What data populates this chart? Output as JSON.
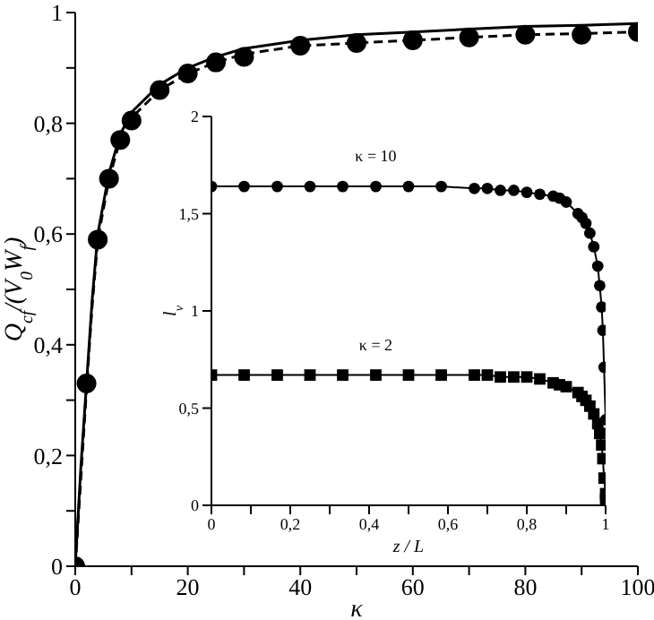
{
  "chart_data": [
    {
      "type": "line",
      "xlabel": "κ",
      "ylabel": "Q$_{cf}$/(V$_{0}$W$_{f}$)",
      "xlim": [
        0,
        100
      ],
      "ylim": [
        0,
        1
      ],
      "xticks": [
        0,
        {
          "value": 10,
          "label": null
        },
        20,
        {
          "value": 30,
          "label": null
        },
        40,
        {
          "value": 50,
          "label": null
        },
        60,
        {
          "value": 70,
          "label": null
        },
        80,
        {
          "value": 90,
          "label": null
        },
        100
      ],
      "yticks": [
        0,
        {
          "value": 0.1,
          "label": null
        },
        {
          "value": 0.2,
          "label": "0,2"
        },
        {
          "value": 0.3,
          "label": null
        },
        {
          "value": 0.4,
          "label": "0,4"
        },
        {
          "value": 0.5,
          "label": null
        },
        {
          "value": 0.6,
          "label": "0,6"
        },
        {
          "value": 0.7,
          "label": null
        },
        {
          "value": 0.8,
          "label": "0,8"
        },
        {
          "value": 0.9,
          "label": null
        },
        1
      ],
      "series": [
        {
          "type": "scatter",
          "marker": "circle",
          "color": "#000000",
          "x": [
            0,
            2,
            4,
            6,
            8,
            10,
            15,
            20,
            25,
            30,
            40,
            50,
            60,
            70,
            80,
            90,
            100
          ],
          "values": [
            0,
            0.33,
            0.59,
            0.7,
            0.77,
            0.805,
            0.86,
            0.89,
            0.91,
            0.92,
            0.94,
            0.945,
            0.95,
            0.955,
            0.96,
            0.96,
            0.965
          ]
        },
        {
          "marker": "none",
          "line_style": "solid",
          "color": "#000000",
          "x": [
            0,
            1,
            2,
            3,
            4,
            6,
            8,
            10,
            15,
            20,
            25,
            30,
            40,
            50,
            60,
            70,
            80,
            90,
            100
          ],
          "values": [
            0,
            0.18,
            0.33,
            0.48,
            0.6,
            0.71,
            0.78,
            0.82,
            0.87,
            0.9,
            0.92,
            0.935,
            0.95,
            0.96,
            0.965,
            0.97,
            0.975,
            0.977,
            0.98
          ]
        },
        {
          "marker": "none",
          "line_style": "dashed",
          "color": "#000000",
          "x": [
            0,
            1,
            2,
            3,
            4,
            6,
            8,
            10,
            15,
            20,
            25,
            30,
            40,
            50,
            60,
            70,
            80,
            90,
            100
          ],
          "values": [
            0,
            0.16,
            0.32,
            0.47,
            0.59,
            0.7,
            0.77,
            0.81,
            0.86,
            0.89,
            0.91,
            0.925,
            0.94,
            0.945,
            0.95,
            0.955,
            0.96,
            0.962,
            0.965
          ]
        }
      ]
    },
    {
      "type": "line",
      "xlabel": "z / L",
      "ylabel": "l$_{v}$",
      "xlim": [
        0,
        1
      ],
      "ylim": [
        0,
        2
      ],
      "xticks": [
        0,
        {
          "value": 0.1,
          "label": null
        },
        {
          "value": 0.2,
          "label": "0,2"
        },
        {
          "value": 0.3,
          "label": null
        },
        {
          "value": 0.4,
          "label": "0,4"
        },
        {
          "value": 0.5,
          "label": null
        },
        {
          "value": 0.6,
          "label": "0,6"
        },
        {
          "value": 0.7,
          "label": null
        },
        {
          "value": 0.8,
          "label": "0,8"
        },
        {
          "value": 0.9,
          "label": null
        },
        1
      ],
      "yticks": [
        0,
        {
          "value": 0.5,
          "label": "0,5"
        },
        1,
        {
          "value": 1.5,
          "label": "1,5"
        },
        2
      ],
      "series": [
        {
          "name": "κ = 10",
          "marker": "circle",
          "line_style": "solid",
          "color": "#000000",
          "x": [
            0,
            0.083,
            0.167,
            0.25,
            0.333,
            0.417,
            0.5,
            0.583,
            0.667,
            0.7,
            0.733,
            0.767,
            0.8,
            0.833,
            0.867,
            0.883,
            0.9,
            0.93,
            0.94,
            0.95,
            0.96,
            0.97,
            0.98,
            0.985,
            0.99,
            0.993,
            0.996,
            1.0
          ],
          "values": [
            1.64,
            1.64,
            1.64,
            1.64,
            1.64,
            1.64,
            1.64,
            1.64,
            1.63,
            1.63,
            1.62,
            1.62,
            1.61,
            1.6,
            1.59,
            1.58,
            1.56,
            1.5,
            1.48,
            1.45,
            1.4,
            1.33,
            1.23,
            1.13,
            1.02,
            0.9,
            0.71,
            0.44
          ]
        },
        {
          "name": "κ = 2",
          "marker": "square",
          "line_style": "solid",
          "color": "#000000",
          "x": [
            0,
            0.083,
            0.167,
            0.25,
            0.333,
            0.417,
            0.5,
            0.583,
            0.667,
            0.7,
            0.733,
            0.767,
            0.8,
            0.833,
            0.867,
            0.883,
            0.9,
            0.93,
            0.94,
            0.95,
            0.96,
            0.97,
            0.98,
            0.985,
            0.99,
            0.993,
            0.996,
            1.0,
            1.0
          ],
          "values": [
            0.67,
            0.67,
            0.67,
            0.67,
            0.67,
            0.67,
            0.67,
            0.67,
            0.67,
            0.67,
            0.66,
            0.66,
            0.66,
            0.65,
            0.63,
            0.62,
            0.61,
            0.58,
            0.56,
            0.54,
            0.51,
            0.47,
            0.42,
            0.37,
            0.31,
            0.24,
            0.14,
            0.06,
            0.03
          ]
        }
      ]
    }
  ]
}
